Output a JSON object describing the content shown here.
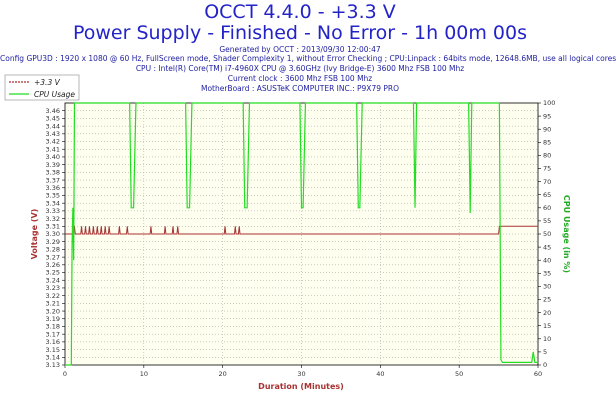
{
  "header": {
    "title": "OCCT 4.4.0 - +3.3 V",
    "subtitle": "Power Supply - Finished - No Error - 1h 00m 00s",
    "generated": "Generated by OCCT : 2013/09/30 12:00:47",
    "config": "Config GPU3D : 1920 x 1080 @ 60 Hz, FullScreen mode, Shader Complexity 1, without Error Checking ; CPU:Linpack : 64bits mode, 12648.6MB, use all logical cores",
    "cpu": "CPU : Intel(R) Core(TM) i7-4960X CPU @ 3.60GHz (Ivy Bridge-E) 3600 Mhz FSB 100 Mhz",
    "clock": "Current clock : 3600 Mhz FSB 100 Mhz",
    "motherboard": "MotherBoard : ASUSTeK COMPUTER INC.: P9X79 PRO"
  },
  "colors": {
    "voltage": "#a83232",
    "cpu": "#22dd22",
    "grid": "#999999",
    "title": "#2323c8"
  },
  "chart_data": {
    "type": "line",
    "xlabel": "Duration (Minutes)",
    "ylabel": "Voltage (V)",
    "y2label": "CPU Usage (in %)",
    "xlim": [
      0,
      60
    ],
    "ylim": [
      3.13,
      3.47
    ],
    "y2lim": [
      0,
      100
    ],
    "xticks": [
      0,
      10,
      20,
      30,
      40,
      50,
      60
    ],
    "yticks": [
      3.13,
      3.14,
      3.15,
      3.16,
      3.17,
      3.18,
      3.19,
      3.2,
      3.21,
      3.22,
      3.23,
      3.24,
      3.25,
      3.26,
      3.27,
      3.28,
      3.29,
      3.3,
      3.31,
      3.32,
      3.33,
      3.34,
      3.35,
      3.36,
      3.37,
      3.38,
      3.39,
      3.4,
      3.41,
      3.42,
      3.43,
      3.44,
      3.45,
      3.46
    ],
    "y2ticks": [
      0,
      5,
      10,
      15,
      20,
      25,
      30,
      35,
      40,
      45,
      50,
      55,
      60,
      65,
      70,
      75,
      80,
      85,
      90,
      95,
      100
    ],
    "grid": true,
    "legend_position": "top-left",
    "series": [
      {
        "name": "+3.3 V",
        "axis": "left",
        "x": [
          0,
          0.9,
          1.0,
          1.1,
          1.2,
          1.3,
          2.0,
          2.1,
          2.2,
          2.5,
          2.6,
          2.7,
          3.0,
          3.1,
          3.2,
          3.5,
          3.6,
          3.7,
          4.0,
          4.1,
          4.2,
          4.5,
          4.6,
          4.7,
          5.0,
          5.1,
          5.2,
          5.5,
          5.6,
          5.7,
          6.8,
          6.9,
          7.0,
          7.8,
          7.9,
          8.0,
          10.8,
          10.9,
          11.0,
          12.6,
          12.7,
          12.8,
          13.6,
          13.7,
          13.8,
          14.2,
          14.3,
          14.4,
          20.2,
          20.3,
          20.4,
          21.5,
          21.6,
          21.7,
          22.0,
          22.1,
          22.2,
          55.0,
          55.1,
          60
        ],
        "y": [
          3.3,
          3.3,
          3.3,
          3.31,
          3.31,
          3.3,
          3.3,
          3.31,
          3.3,
          3.3,
          3.31,
          3.3,
          3.3,
          3.31,
          3.3,
          3.3,
          3.31,
          3.3,
          3.3,
          3.31,
          3.3,
          3.3,
          3.31,
          3.3,
          3.3,
          3.31,
          3.3,
          3.3,
          3.31,
          3.3,
          3.3,
          3.31,
          3.3,
          3.3,
          3.31,
          3.3,
          3.3,
          3.31,
          3.3,
          3.3,
          3.31,
          3.3,
          3.3,
          3.31,
          3.3,
          3.3,
          3.31,
          3.3,
          3.3,
          3.31,
          3.3,
          3.3,
          3.31,
          3.3,
          3.3,
          3.31,
          3.3,
          3.3,
          3.31,
          3.31
        ]
      },
      {
        "name": "CPU Usage",
        "axis": "right",
        "x": [
          0,
          0.8,
          0.9,
          1.0,
          1.1,
          1.2,
          1.3,
          1.4,
          8.2,
          8.4,
          8.7,
          9.0,
          15.3,
          15.5,
          15.8,
          16.1,
          22.6,
          22.8,
          23.1,
          23.4,
          29.8,
          30.0,
          30.2,
          30.5,
          37.0,
          37.2,
          37.4,
          37.7,
          44.2,
          44.4,
          44.6,
          51.2,
          51.4,
          51.6,
          55.1,
          55.3,
          55.5,
          59.2,
          59.4,
          59.6,
          60
        ],
        "y": [
          0,
          0,
          46,
          60,
          40,
          100,
          100,
          100,
          100,
          60,
          60,
          100,
          100,
          60,
          60,
          100,
          100,
          60,
          60,
          100,
          100,
          60,
          60,
          100,
          100,
          60,
          60,
          100,
          100,
          60,
          100,
          100,
          58,
          100,
          100,
          2,
          1,
          1,
          5,
          1,
          1
        ]
      }
    ]
  }
}
